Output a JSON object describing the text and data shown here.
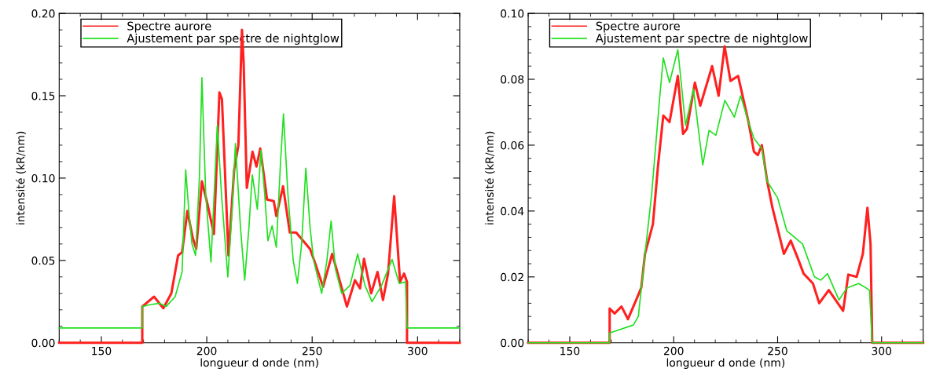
{
  "chart_data": [
    {
      "type": "line",
      "xlabel": "longueur d onde (nm)",
      "ylabel": "intensité (kR/nm)",
      "xlim": [
        130,
        320
      ],
      "ylim": [
        0,
        0.2
      ],
      "xticks": [
        150,
        200,
        250,
        300
      ],
      "yticks": [
        {
          "value": 0,
          "label": "0.00"
        },
        {
          "value": 0.05,
          "label": "0.05"
        },
        {
          "value": 0.1,
          "label": "0.10"
        },
        {
          "value": 0.15,
          "label": "0.15"
        },
        {
          "value": 0.2,
          "label": "0.20"
        }
      ],
      "legend": "top left",
      "grid": false,
      "series": [
        {
          "name": "Spectre aurore",
          "color": "#ff2020",
          "x": [
            130,
            169.4,
            169.4,
            175,
            179.4,
            183.2,
            186.4,
            188.3,
            190.8,
            193.3,
            195,
            197.7,
            200.2,
            203.4,
            206,
            207.2,
            210.3,
            213,
            215,
            216.7,
            217.5,
            219,
            221.7,
            223.6,
            225.4,
            228.6,
            231.8,
            233,
            236.2,
            239.4,
            242.4,
            245.7,
            249,
            250.7,
            255.2,
            259.5,
            266.5,
            270.3,
            272.7,
            274.6,
            278,
            281,
            283.6,
            286,
            288.9,
            291.7,
            293.6,
            295,
            295,
            320
          ],
          "values": [
            0,
            0,
            0.022,
            0.028,
            0.021,
            0.03,
            0.053,
            0.055,
            0.08,
            0.064,
            0.057,
            0.098,
            0.085,
            0.066,
            0.152,
            0.148,
            0.053,
            0.105,
            0.12,
            0.19,
            0.17,
            0.094,
            0.116,
            0.107,
            0.118,
            0.087,
            0.086,
            0.077,
            0.095,
            0.067,
            0.067,
            0.062,
            0.057,
            0.051,
            0.034,
            0.054,
            0.022,
            0.038,
            0.033,
            0.051,
            0.03,
            0.043,
            0.026,
            0.042,
            0.089,
            0.037,
            0.042,
            0.037,
            0,
            0
          ]
        },
        {
          "name": "Ajustement par spectre de nightglow",
          "color": "#20e020",
          "x": [
            130,
            169.4,
            169.4,
            172.5,
            177.6,
            180.7,
            185,
            188.3,
            190,
            191.5,
            193,
            194.7,
            196.5,
            197.7,
            199.5,
            202,
            203.5,
            205,
            207,
            210,
            212,
            213.6,
            216,
            218,
            220,
            221.6,
            224,
            225.7,
            227.5,
            229,
            231,
            233,
            235,
            236.4,
            238.5,
            241,
            243,
            245,
            247,
            249,
            250.7,
            254.5,
            257,
            259,
            261,
            264,
            268,
            271.6,
            275,
            278.4,
            283,
            287.9,
            291.3,
            294.3,
            295,
            320
          ],
          "values": [
            0.009,
            0.009,
            0.022,
            0.023,
            0.024,
            0.022,
            0.028,
            0.043,
            0.105,
            0.08,
            0.06,
            0.053,
            0.1,
            0.161,
            0.09,
            0.049,
            0.09,
            0.132,
            0.09,
            0.04,
            0.08,
            0.121,
            0.07,
            0.038,
            0.07,
            0.102,
            0.081,
            0.117,
            0.09,
            0.062,
            0.071,
            0.058,
            0.11,
            0.139,
            0.09,
            0.05,
            0.036,
            0.06,
            0.106,
            0.07,
            0.05,
            0.03,
            0.05,
            0.074,
            0.045,
            0.03,
            0.035,
            0.054,
            0.035,
            0.025,
            0.035,
            0.0506,
            0.036,
            0.037,
            0.009,
            0.009
          ]
        }
      ]
    },
    {
      "type": "line",
      "xlabel": "longueur d onde (nm)",
      "ylabel": "intensité (kR/nm)",
      "xlim": [
        130,
        320
      ],
      "ylim": [
        0,
        0.1
      ],
      "xticks": [
        150,
        200,
        250,
        300
      ],
      "yticks": [
        {
          "value": 0,
          "label": "0.00"
        },
        {
          "value": 0.02,
          "label": "0.02"
        },
        {
          "value": 0.04,
          "label": "0.04"
        },
        {
          "value": 0.06,
          "label": "0.06"
        },
        {
          "value": 0.08,
          "label": "0.08"
        },
        {
          "value": 0.1,
          "label": "0.10"
        }
      ],
      "legend": "top left",
      "grid": false,
      "series": [
        {
          "name": "Spectre aurore",
          "color": "#ff2020",
          "x": [
            130,
            169.2,
            169.2,
            171.6,
            174.9,
            178,
            181.8,
            184.4,
            186.2,
            190,
            192.5,
            195,
            198,
            202,
            204.5,
            206.4,
            210.2,
            212.8,
            218.5,
            221.6,
            224.5,
            227.3,
            231,
            236,
            238.6,
            240.5,
            242.4,
            245,
            247.5,
            253,
            256.3,
            259.5,
            262.5,
            267,
            270,
            274.6,
            281.5,
            284,
            288,
            291,
            293.2,
            294.7,
            295.5,
            320
          ],
          "values": [
            0,
            0,
            0.0104,
            0.0089,
            0.011,
            0.0072,
            0.0128,
            0.0167,
            0.027,
            0.036,
            0.054,
            0.069,
            0.067,
            0.081,
            0.0634,
            0.065,
            0.079,
            0.072,
            0.084,
            0.075,
            0.09,
            0.0795,
            0.081,
            0.067,
            0.058,
            0.057,
            0.06,
            0.049,
            0.041,
            0.027,
            0.031,
            0.026,
            0.021,
            0.018,
            0.012,
            0.016,
            0.0097,
            0.0207,
            0.02,
            0.027,
            0.041,
            0.03,
            0,
            0
          ]
        },
        {
          "name": "Ajustement par spectre de nightglow",
          "color": "#20e020",
          "x": [
            130,
            169.2,
            169.2,
            180.6,
            183,
            186.2,
            189.4,
            193.2,
            195,
            198,
            202,
            205.7,
            209.5,
            214,
            217,
            220.3,
            224.6,
            229.2,
            232.2,
            236,
            238.6,
            242.4,
            245,
            250,
            254.4,
            262,
            267.7,
            270.8,
            274,
            279.5,
            283.3,
            289,
            294.2,
            295.5,
            320
          ],
          "values": [
            0,
            0,
            0.003,
            0.0054,
            0.008,
            0.027,
            0.045,
            0.074,
            0.0865,
            0.079,
            0.089,
            0.066,
            0.077,
            0.054,
            0.0645,
            0.063,
            0.0736,
            0.0685,
            0.075,
            0.067,
            0.062,
            0.059,
            0.049,
            0.044,
            0.034,
            0.03,
            0.02,
            0.019,
            0.021,
            0.013,
            0.0166,
            0.018,
            0.016,
            0,
            0
          ]
        }
      ]
    }
  ]
}
